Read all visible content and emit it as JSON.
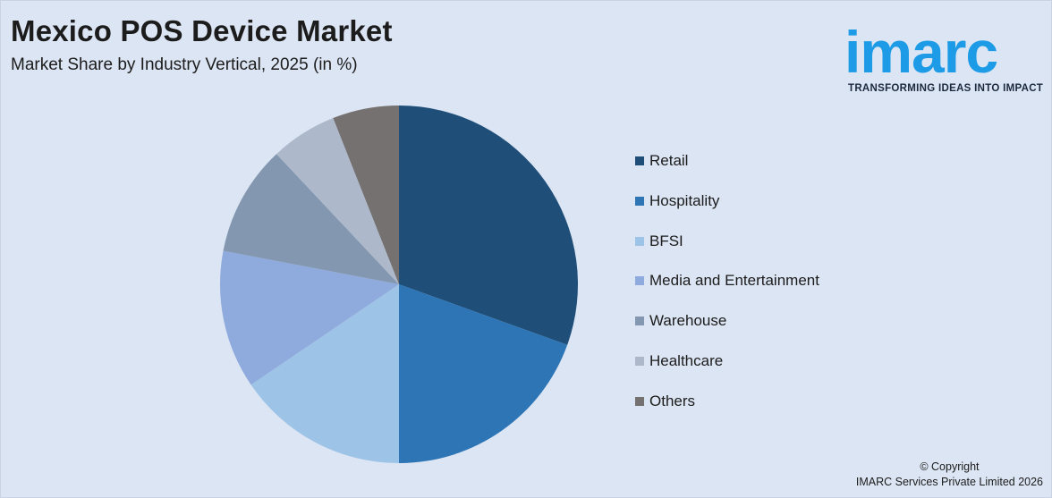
{
  "header": {
    "title": "Mexico POS Device Market",
    "subtitle": "Market Share by Industry Vertical, 2025 (in %)"
  },
  "logo": {
    "wordmark": "imarc",
    "tagline": "TRANSFORMING IDEAS INTO IMPACT",
    "color": "#1d9be6"
  },
  "footer": {
    "copyright_line1": "© Copyright",
    "copyright_line2": "IMARC Services Private Limited 2026"
  },
  "chart_data": {
    "type": "pie",
    "title": "Mexico POS Device Market",
    "subtitle": "Market Share by Industry Vertical, 2025 (in %)",
    "legend_position": "right",
    "categories": [
      "Retail",
      "Hospitality",
      "BFSI",
      "Media and Entertainment",
      "Warehouse",
      "Healthcare",
      "Others"
    ],
    "values": [
      30.5,
      19.5,
      15.5,
      12.5,
      10.0,
      6.0,
      6.0
    ],
    "colors": [
      "#1f4e79",
      "#2e75b6",
      "#9dc3e6",
      "#8faadc",
      "#8497b0",
      "#adb9ca",
      "#767171"
    ],
    "start_angle_deg": 0,
    "direction": "clockwise"
  }
}
